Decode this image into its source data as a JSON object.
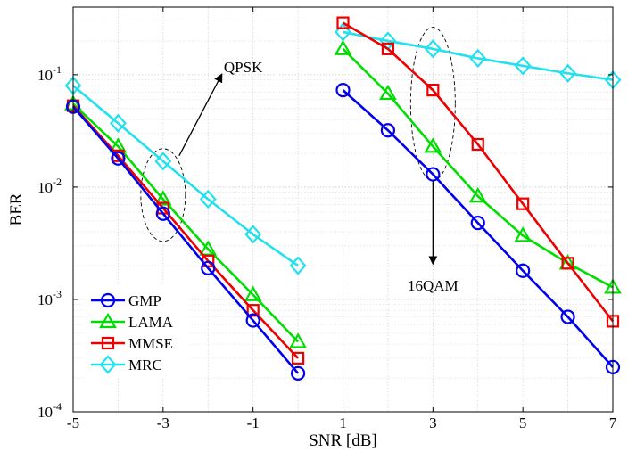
{
  "chart_data": {
    "type": "line",
    "title": "",
    "xlabel": "SNR [dB]",
    "ylabel": "BER",
    "y_scale": "log",
    "xlim": [
      -5,
      7
    ],
    "ylim": [
      0.0001,
      0.4
    ],
    "grid": true,
    "legend_position": "bottom-left",
    "x_ticks": [
      "-5",
      "-3",
      "-1",
      "1",
      "3",
      "5",
      "7"
    ],
    "y_ticks": [
      {
        "base": "10",
        "exp": "-1",
        "value": 0.1
      },
      {
        "base": "10",
        "exp": "-2",
        "value": 0.01
      },
      {
        "base": "10",
        "exp": "-3",
        "value": 0.001
      },
      {
        "base": "10",
        "exp": "-4",
        "value": 0.0001
      }
    ],
    "annotations": [
      {
        "text": "QPSK"
      },
      {
        "text": "16QAM"
      }
    ],
    "series": [
      {
        "name": "GMP",
        "color": "#0000ee",
        "marker": "circle",
        "segments": [
          {
            "x": [
              -5,
              -4,
              -3,
              -2,
              -1,
              0
            ],
            "y": [
              0.052,
              0.018,
              0.0058,
              0.0019,
              0.00065,
              0.00022
            ]
          },
          {
            "x": [
              1,
              2,
              3,
              4,
              5,
              6,
              7
            ],
            "y": [
              0.073,
              0.032,
              0.013,
              0.0048,
              0.0018,
              0.0007,
              0.00025
            ]
          }
        ]
      },
      {
        "name": "LAMA",
        "color": "#00dd00",
        "marker": "triangle",
        "segments": [
          {
            "x": [
              -5,
              -4,
              -3,
              -2,
              -1,
              0
            ],
            "y": [
              0.055,
              0.023,
              0.0078,
              0.0028,
              0.0011,
              0.00042
            ]
          },
          {
            "x": [
              1,
              2,
              3,
              4,
              5,
              6,
              7
            ],
            "y": [
              0.17,
              0.068,
              0.023,
              0.0083,
              0.0037,
              0.0021,
              0.00128
            ]
          }
        ]
      },
      {
        "name": "MMSE",
        "color": "#ee0000",
        "marker": "square",
        "segments": [
          {
            "x": [
              -5,
              -4,
              -3,
              -2,
              -1,
              0
            ],
            "y": [
              0.053,
              0.019,
              0.0065,
              0.0022,
              0.0008,
              0.0003
            ]
          },
          {
            "x": [
              1,
              2,
              3,
              4,
              5,
              6,
              7
            ],
            "y": [
              0.29,
              0.17,
              0.073,
              0.024,
              0.0071,
              0.0021,
              0.00064
            ]
          }
        ]
      },
      {
        "name": "MRC",
        "color": "#22e0ee",
        "marker": "diamond",
        "segments": [
          {
            "x": [
              -5,
              -4,
              -3,
              -2,
              -1,
              0
            ],
            "y": [
              0.08,
              0.037,
              0.017,
              0.0078,
              0.0038,
              0.002
            ]
          },
          {
            "x": [
              1,
              2,
              3,
              4,
              5,
              6,
              7
            ],
            "y": [
              0.24,
              0.2,
              0.17,
              0.14,
              0.12,
              0.103,
              0.09
            ]
          }
        ]
      }
    ]
  }
}
